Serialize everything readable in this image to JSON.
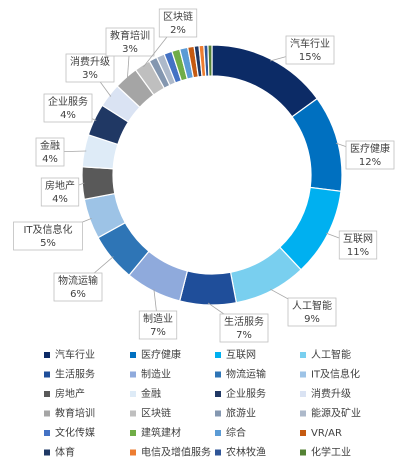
{
  "chart_data": {
    "type": "donut",
    "categories": [
      "汽车行业",
      "医疗健康",
      "互联网",
      "人工智能",
      "生活服务",
      "制造业",
      "物流运输",
      "IT及信息化",
      "房地产",
      "金融",
      "企业服务",
      "消费升级",
      "教育培训",
      "区块链",
      "旅游业",
      "能源及矿业",
      "文化传媒",
      "建筑建材",
      "综合",
      "VR/AR",
      "体育",
      "电信及增值服务",
      "农林牧渔",
      "化学工业"
    ],
    "values": [
      15,
      12,
      11,
      9,
      7,
      7,
      6,
      5,
      4,
      4,
      4,
      3,
      3,
      2,
      1,
      1,
      1,
      1,
      1,
      0.8,
      0.6,
      0.6,
      0.5,
      0.5
    ],
    "value_labels": [
      "15%",
      "12%",
      "11%",
      "9%",
      "7%",
      "7%",
      "6%",
      "5%",
      "4%",
      "4%",
      "4%",
      "3%",
      "3%",
      "2%",
      null,
      null,
      null,
      null,
      null,
      null,
      null,
      null,
      null,
      null
    ],
    "colors": [
      "#0c2b66",
      "#0070c0",
      "#00b0f0",
      "#79cfef",
      "#1f4e9a",
      "#8faadc",
      "#2e75b6",
      "#9dc3e6",
      "#595959",
      "#deebf7",
      "#203864",
      "#dae3f3",
      "#a5a5a5",
      "#bfbfbf",
      "#8497b0",
      "#adb9ca",
      "#4472c4",
      "#70ad47",
      "#5b9bd5",
      "#c55a11",
      "#1f3864",
      "#ed7d31",
      "#2f5597",
      "#548235"
    ]
  }
}
